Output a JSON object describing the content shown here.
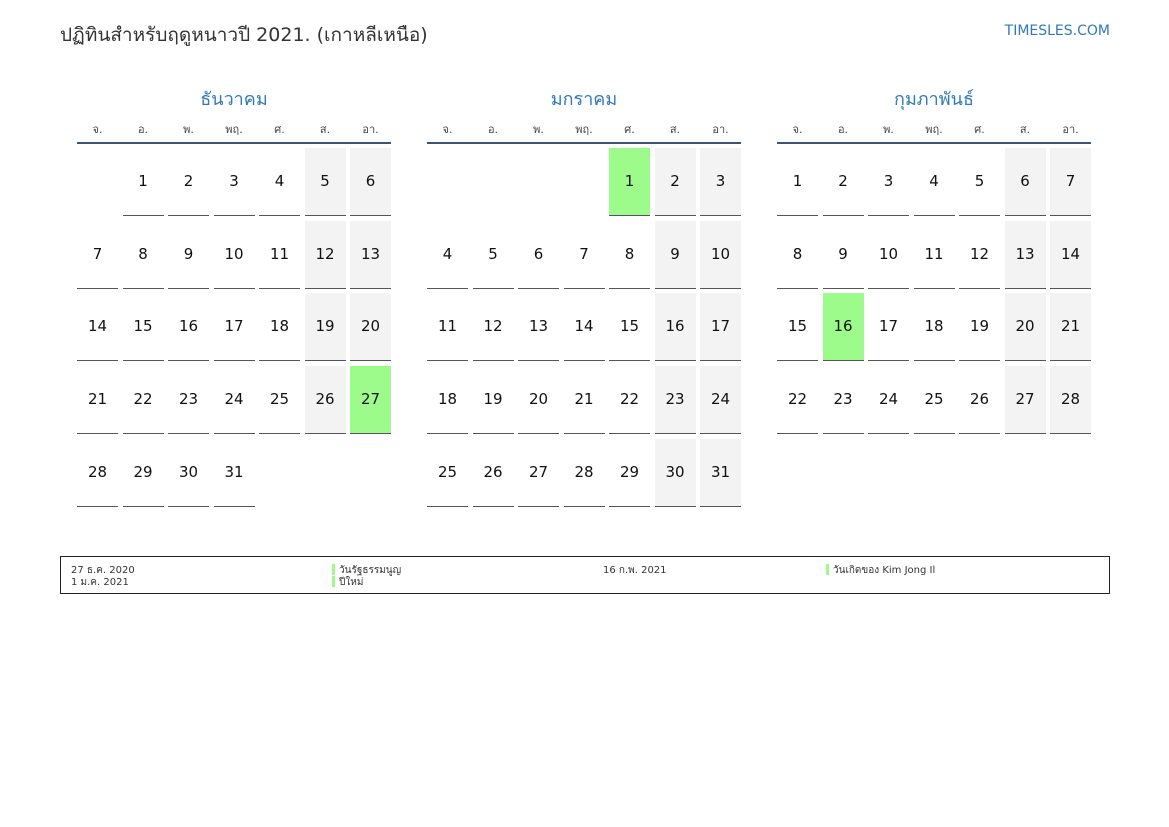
{
  "header": {
    "title": "ปฏิทินสำหรับฤดูหนาวปี 2021. (เกาหลีเหนือ)",
    "site": "TIMESLES.COM"
  },
  "weekdays": [
    "จ.",
    "อ.",
    "พ.",
    "พฤ.",
    "ศ.",
    "ส.",
    "อา."
  ],
  "months": [
    {
      "name": "ธันวาคม",
      "holidays": [
        27
      ],
      "weeks": [
        [
          null,
          1,
          2,
          3,
          4,
          5,
          6
        ],
        [
          7,
          8,
          9,
          10,
          11,
          12,
          13
        ],
        [
          14,
          15,
          16,
          17,
          18,
          19,
          20
        ],
        [
          21,
          22,
          23,
          24,
          25,
          26,
          27
        ],
        [
          28,
          29,
          30,
          31,
          null,
          null,
          null
        ]
      ]
    },
    {
      "name": "มกราคม",
      "holidays": [
        1
      ],
      "weeks": [
        [
          null,
          null,
          null,
          null,
          1,
          2,
          3
        ],
        [
          4,
          5,
          6,
          7,
          8,
          9,
          10
        ],
        [
          11,
          12,
          13,
          14,
          15,
          16,
          17
        ],
        [
          18,
          19,
          20,
          21,
          22,
          23,
          24
        ],
        [
          25,
          26,
          27,
          28,
          29,
          30,
          31
        ]
      ]
    },
    {
      "name": "กุมภาพันธ์",
      "holidays": [
        16
      ],
      "weeks": [
        [
          1,
          2,
          3,
          4,
          5,
          6,
          7
        ],
        [
          8,
          9,
          10,
          11,
          12,
          13,
          14
        ],
        [
          15,
          16,
          17,
          18,
          19,
          20,
          21
        ],
        [
          22,
          23,
          24,
          25,
          26,
          27,
          28
        ]
      ]
    }
  ],
  "legend": [
    {
      "date": "27 ธ.ค. 2020",
      "name": "วันรัฐธรรมนูญ"
    },
    {
      "date": "1 ม.ค. 2021",
      "name": "ปีใหม่"
    },
    {
      "date": "16 ก.พ. 2021",
      "name": "วันเกิดของ Kim Jong Il"
    }
  ]
}
